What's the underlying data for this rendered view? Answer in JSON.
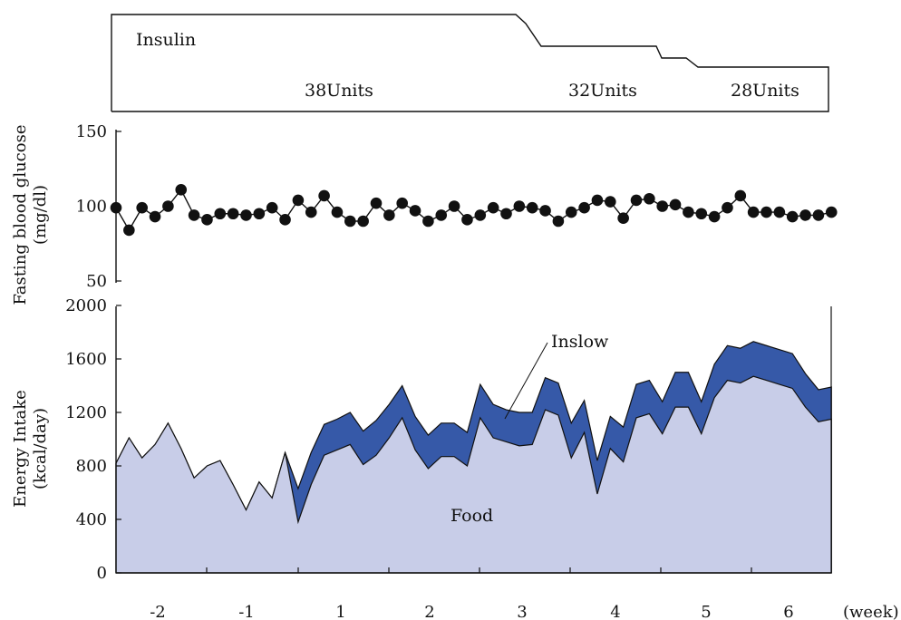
{
  "chart_data": [
    {
      "type": "step",
      "name_label": "Insulin",
      "dose_labels": [
        "38Units",
        "32Units",
        "28Units"
      ]
    },
    {
      "type": "line",
      "ylabel": "Fasting blood glucose\n(mg/dl)",
      "ylim": [
        50,
        150
      ],
      "yticks": [
        50,
        100,
        150
      ],
      "series": [
        {
          "values": [
            99,
            84,
            99,
            93,
            100,
            111,
            94,
            91,
            95,
            95,
            94,
            95,
            99,
            91,
            104,
            96,
            107,
            96,
            90,
            90,
            102,
            94,
            102,
            97,
            90,
            94,
            100,
            91,
            94,
            99,
            95,
            100,
            99,
            97,
            90,
            96,
            99,
            104,
            103,
            92,
            104,
            105,
            100,
            101,
            96,
            95,
            93,
            99,
            107,
            96,
            96,
            96,
            93,
            94,
            94,
            96
          ]
        }
      ]
    },
    {
      "type": "area",
      "ylabel": "Energy Intake\n(kcal/day)",
      "ylim": [
        0,
        2000
      ],
      "yticks": [
        0,
        400,
        800,
        1200,
        1600,
        2000
      ],
      "xlabel": "(week)",
      "xticks": [
        "-2",
        "-1",
        "1",
        "2",
        "3",
        "4",
        "5",
        "6"
      ],
      "annotations": [
        "Inslow",
        "Food"
      ],
      "series": [
        {
          "name": "Food",
          "color": "#c8cde8",
          "values": [
            820,
            1010,
            860,
            960,
            1120,
            930,
            710,
            800,
            840,
            660,
            470,
            680,
            560,
            900,
            380,
            660,
            880,
            920,
            960,
            810,
            880,
            1010,
            1160,
            920,
            780,
            870,
            870,
            800,
            1160,
            1010,
            980,
            950,
            960,
            1220,
            1180,
            860,
            1050,
            590,
            930,
            830,
            1160,
            1190,
            1040,
            1240,
            1240,
            1040,
            1310,
            1440,
            1420,
            1470,
            1440,
            1410,
            1380,
            1240,
            1130,
            1150
          ]
        },
        {
          "name": "Inslow",
          "color": "#3659a8",
          "values": [
            820,
            1010,
            860,
            960,
            1120,
            930,
            710,
            800,
            840,
            660,
            470,
            680,
            560,
            900,
            630,
            900,
            1110,
            1150,
            1200,
            1060,
            1140,
            1260,
            1400,
            1170,
            1030,
            1120,
            1120,
            1050,
            1410,
            1260,
            1220,
            1200,
            1200,
            1460,
            1420,
            1120,
            1290,
            840,
            1170,
            1090,
            1410,
            1440,
            1280,
            1500,
            1500,
            1280,
            1560,
            1700,
            1680,
            1730,
            1700,
            1670,
            1640,
            1490,
            1370,
            1390
          ]
        }
      ]
    }
  ]
}
